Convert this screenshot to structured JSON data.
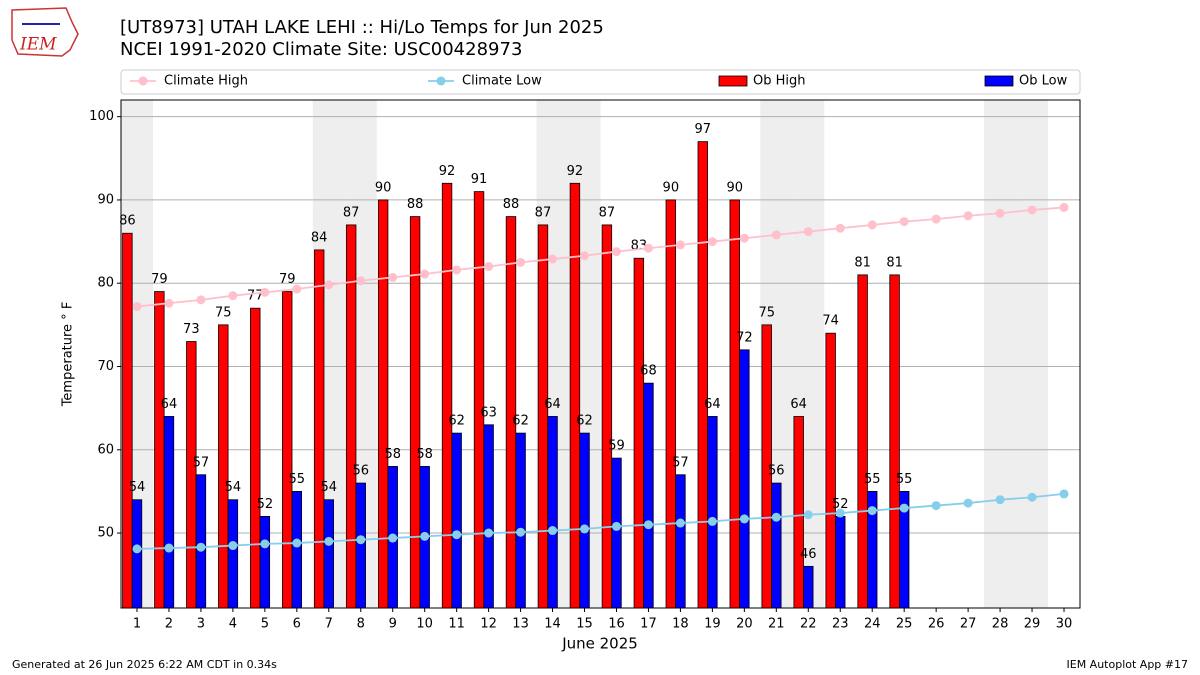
{
  "chart_data": {
    "type": "bar_line",
    "title": "[UT8973] UTAH LAKE LEHI :: Hi/Lo Temps for Jun 2025",
    "subtitle": "NCEI 1991-2020 Climate Site: USC00428973",
    "x_label": "June 2025",
    "y_label": "Temperature ° F",
    "x": [
      1,
      2,
      3,
      4,
      5,
      6,
      7,
      8,
      9,
      10,
      11,
      12,
      13,
      14,
      15,
      16,
      17,
      18,
      19,
      20,
      21,
      22,
      23,
      24,
      25,
      26,
      27,
      28,
      29,
      30
    ],
    "xlim": [
      0.5,
      30.5
    ],
    "xticks": [
      1,
      2,
      3,
      4,
      5,
      6,
      7,
      8,
      9,
      10,
      11,
      12,
      13,
      14,
      15,
      16,
      17,
      18,
      19,
      20,
      21,
      22,
      23,
      24,
      25,
      26,
      27,
      28,
      29,
      30
    ],
    "ylim": [
      41,
      102
    ],
    "yticks": [
      50,
      60,
      70,
      80,
      90,
      100
    ],
    "grid": true,
    "shaded_days": [
      1,
      7,
      8,
      14,
      15,
      21,
      22,
      28,
      29
    ],
    "series": [
      {
        "name": "Climate High",
        "kind": "line",
        "color": "#ffc0cb",
        "values": [
          77.2,
          77.6,
          78.0,
          78.5,
          78.9,
          79.3,
          79.8,
          80.3,
          80.7,
          81.1,
          81.6,
          82.0,
          82.5,
          82.9,
          83.3,
          83.8,
          84.2,
          84.6,
          85.0,
          85.4,
          85.8,
          86.2,
          86.6,
          87.0,
          87.4,
          87.7,
          88.1,
          88.4,
          88.8,
          89.1
        ]
      },
      {
        "name": "Climate Low",
        "kind": "line",
        "color": "#87ceeb",
        "values": [
          48.1,
          48.2,
          48.3,
          48.5,
          48.7,
          48.8,
          49.0,
          49.2,
          49.4,
          49.6,
          49.8,
          50.0,
          50.1,
          50.3,
          50.5,
          50.8,
          51.0,
          51.2,
          51.4,
          51.7,
          51.9,
          52.2,
          52.4,
          52.7,
          53.0,
          53.3,
          53.6,
          54.0,
          54.3,
          54.7
        ]
      },
      {
        "name": "Ob High",
        "kind": "bar",
        "color": "#ff0000",
        "values": [
          86,
          79,
          73,
          75,
          77,
          79,
          84,
          87,
          90,
          88,
          92,
          91,
          88,
          87,
          92,
          87,
          83,
          90,
          97,
          90,
          75,
          64,
          74,
          81,
          81,
          null,
          null,
          null,
          null,
          null
        ]
      },
      {
        "name": "Ob Low",
        "kind": "bar",
        "color": "#0000ff",
        "values": [
          54,
          64,
          57,
          54,
          52,
          55,
          54,
          56,
          58,
          58,
          62,
          63,
          62,
          64,
          62,
          59,
          68,
          57,
          64,
          72,
          56,
          46,
          52,
          55,
          55,
          null,
          null,
          null,
          null,
          null
        ]
      }
    ]
  },
  "logo_text": "IEM",
  "footer_left": "Generated at 26 Jun 2025 6:22 AM CDT in 0.34s",
  "footer_right": "IEM Autoplot App #17"
}
